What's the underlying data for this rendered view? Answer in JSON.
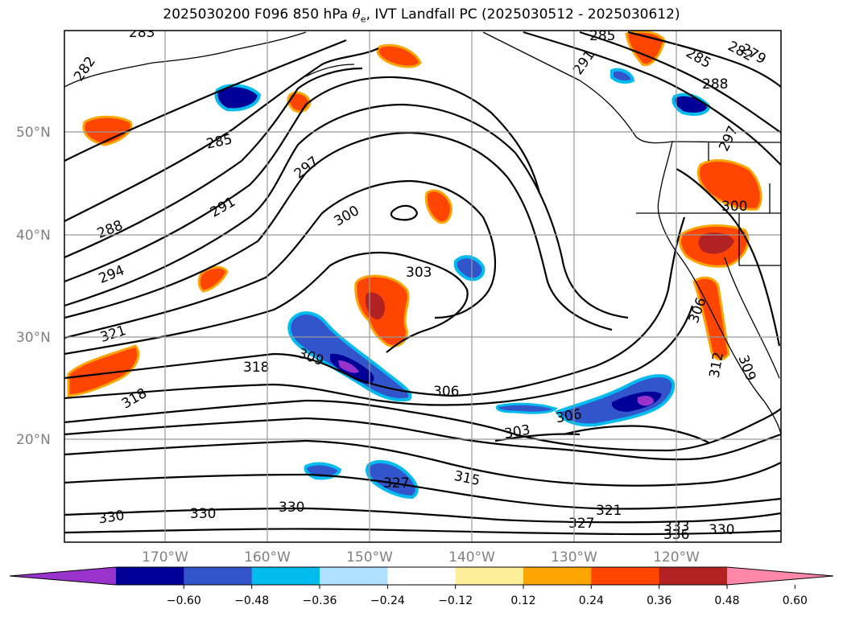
{
  "title": {
    "prefix": "2025030200 F096 850 hPa ",
    "symbol": "θ",
    "symbol_sub": "e",
    "suffix": ", IVT Landfall PC (2025030512 - 2025030612)"
  },
  "map": {
    "lat_labels": [
      "50°N",
      "40°N",
      "30°N",
      "20°N"
    ],
    "lon_labels": [
      "170°W",
      "160°W",
      "150°W",
      "140°W",
      "130°W",
      "120°W"
    ],
    "contour_labels": [
      "283",
      "282",
      "285",
      "288",
      "291",
      "294",
      "297",
      "300",
      "303",
      "306",
      "309",
      "312",
      "315",
      "318",
      "321",
      "327",
      "330",
      "333",
      "336",
      "279",
      "300",
      "309",
      "306",
      "303"
    ]
  },
  "colorbar": {
    "colors": [
      "#9933cc",
      "#000099",
      "#3355cc",
      "#00bbee",
      "#b0e0ff",
      "#ffffff",
      "#ffee99",
      "#ffa500",
      "#ff4500",
      "#b22222",
      "#ff88aa"
    ],
    "tick_labels": [
      "−0.60",
      "−0.48",
      "−0.36",
      "−0.24",
      "−0.12",
      "0.12",
      "0.24",
      "0.36",
      "0.48",
      "0.60"
    ]
  }
}
